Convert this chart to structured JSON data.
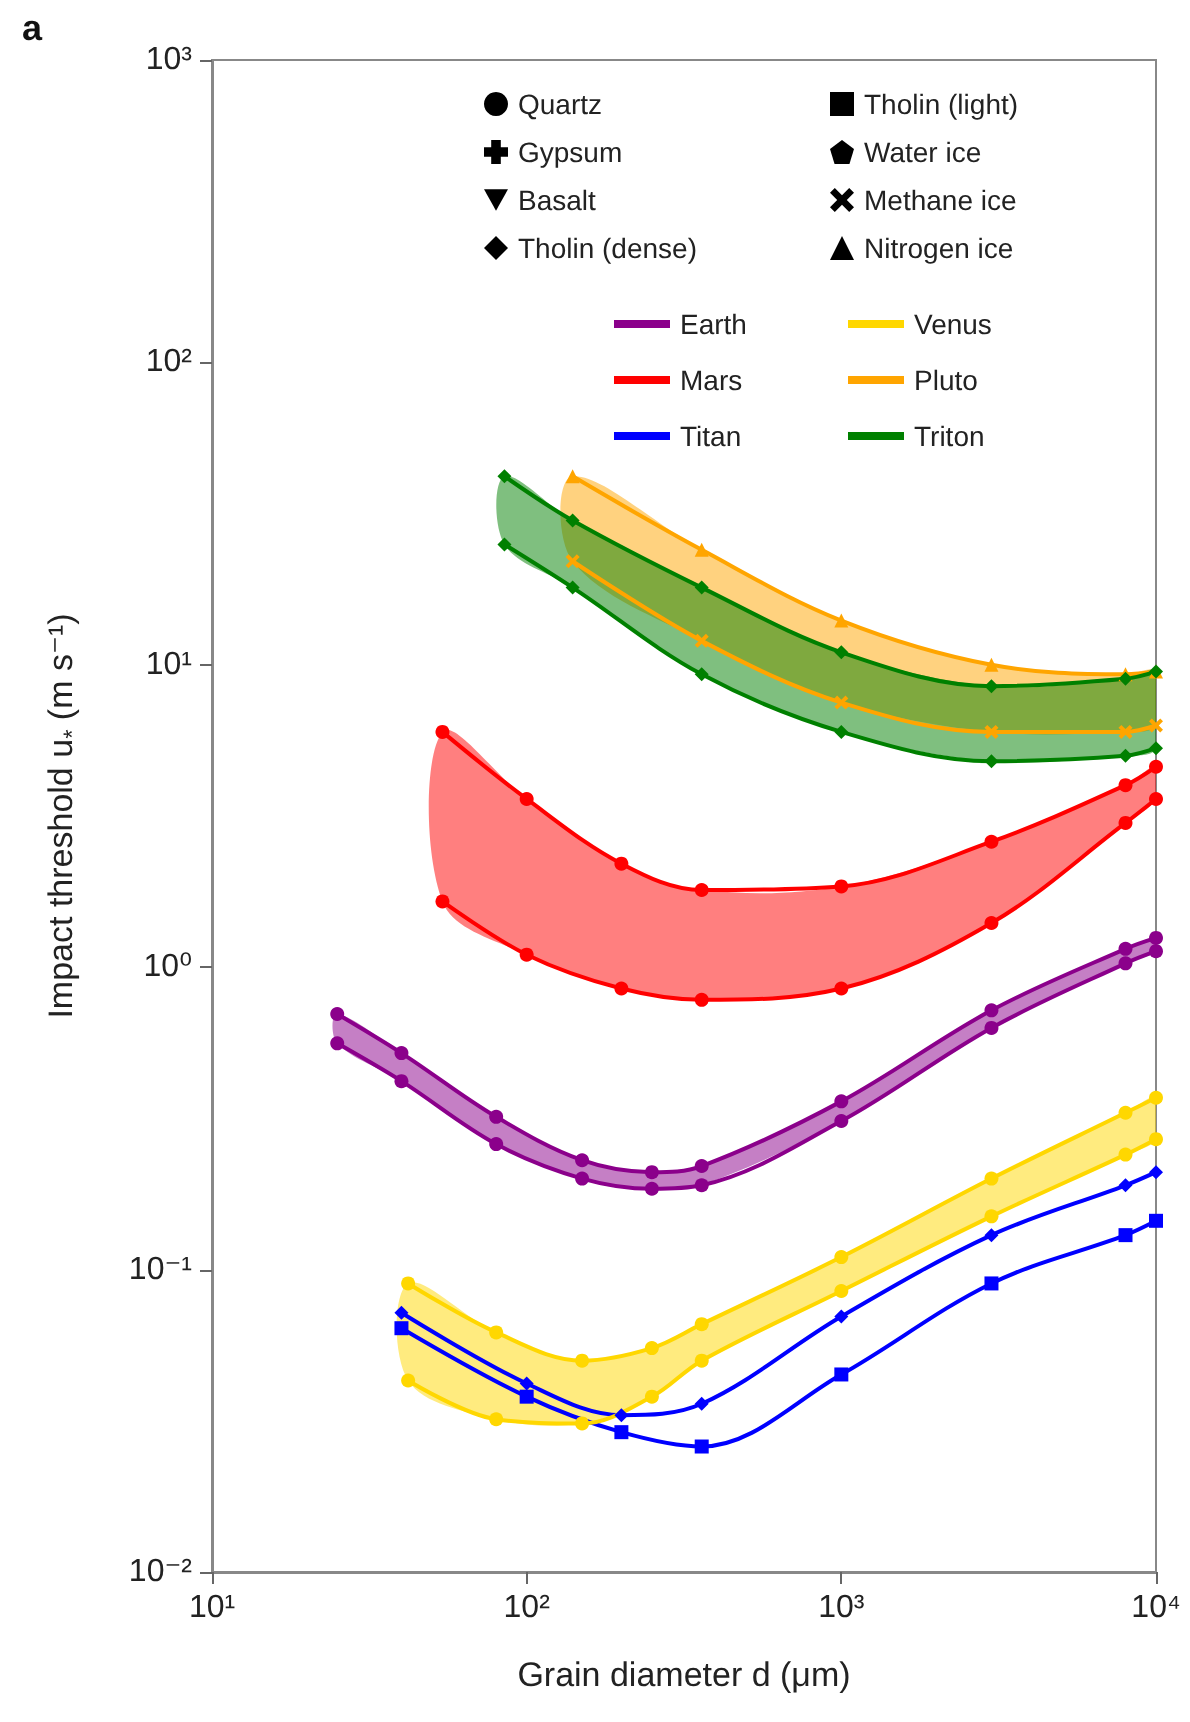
{
  "chart_data": {
    "type": "line",
    "title": "a",
    "xlabel": "Grain diameter d (μm)",
    "ylabel": "Impact threshold u$_{*}$ (m s⁻¹)",
    "log": "xy",
    "grid": false,
    "legend": "top right",
    "xlim": [
      10,
      10000
    ],
    "xticks": [
      {
        "value": 10,
        "label": "10¹"
      },
      {
        "value": 100,
        "label": "10²"
      },
      {
        "value": 1000,
        "label": "10³"
      },
      {
        "value": 10000,
        "label": "10⁴"
      }
    ],
    "ylim": [
      0.01,
      1000
    ],
    "yticks": [
      {
        "value": 0.01,
        "label": "10⁻²"
      },
      {
        "value": 0.1,
        "label": "10⁻¹"
      },
      {
        "value": 1,
        "label": "10⁰"
      },
      {
        "value": 10,
        "label": "10¹"
      },
      {
        "value": 100,
        "label": "10²"
      },
      {
        "value": 1000,
        "label": "10³"
      }
    ],
    "series": [
      {
        "name": "Quartz",
        "color": "#000000",
        "marker": "circle"
      },
      {
        "name": "Gypsum",
        "color": "#000000",
        "marker": "plus"
      },
      {
        "name": "Basalt",
        "color": "#000000",
        "marker": "triangle-down"
      },
      {
        "name": "Tholin (dense)",
        "color": "#000000",
        "marker": "diamond"
      },
      {
        "name": "Tholin (light)",
        "color": "#000000",
        "marker": "square"
      },
      {
        "name": "Water ice",
        "color": "#000000",
        "marker": "pentagon"
      },
      {
        "name": "Methane ice",
        "color": "#000000",
        "marker": "cross"
      },
      {
        "name": "Nitrogen ice",
        "color": "#000000",
        "marker": "triangle"
      },
      {
        "name": "Earth",
        "color": "#8b008b",
        "marker": "circle",
        "x": [
          25,
          40,
          80,
          150,
          250,
          360,
          1000,
          3000,
          8000,
          10000
        ],
        "values": [
          0.7,
          0.52,
          0.32,
          0.23,
          0.21,
          0.22,
          0.36,
          0.72,
          1.15,
          1.25
        ],
        "upper": [
          0.7,
          0.52,
          0.32,
          0.23,
          0.21,
          0.22,
          0.36,
          0.72,
          1.15,
          1.25
        ],
        "lower": [
          0.56,
          0.42,
          0.26,
          0.2,
          0.185,
          0.19,
          0.31,
          0.63,
          1.03,
          1.13
        ]
      },
      {
        "color": "#8b008b",
        "marker": "circle",
        "x": [
          25,
          40,
          80,
          150,
          250,
          360,
          1000,
          3000,
          8000,
          10000
        ],
        "values": [
          0.56,
          0.42,
          0.26,
          0.2,
          0.185,
          0.19,
          0.31,
          0.63,
          1.03,
          1.13
        ]
      },
      {
        "name": "Mars",
        "color": "#ff0000",
        "marker": "circle",
        "x": [
          54,
          100,
          200,
          360,
          1000,
          3000,
          8000,
          10000
        ],
        "values": [
          6.0,
          3.6,
          2.2,
          1.8,
          1.85,
          2.6,
          4.0,
          4.6
        ],
        "upper": [
          6.0,
          3.6,
          2.2,
          1.8,
          1.85,
          2.6,
          4.0,
          4.6
        ],
        "lower": [
          1.65,
          1.1,
          0.85,
          0.78,
          0.85,
          1.4,
          3.0,
          3.6
        ]
      },
      {
        "color": "#ff0000",
        "marker": "circle",
        "x": [
          54,
          100,
          200,
          360,
          1000,
          3000,
          8000,
          10000
        ],
        "values": [
          1.65,
          1.1,
          0.85,
          0.78,
          0.85,
          1.4,
          3.0,
          3.6
        ]
      },
      {
        "name": "Titan",
        "color": "#0000ff",
        "marker": "diamond",
        "x": [
          40,
          100,
          200,
          360,
          1000,
          3000,
          8000,
          10000
        ],
        "values": [
          0.072,
          0.042,
          0.033,
          0.036,
          0.07,
          0.13,
          0.19,
          0.21
        ]
      },
      {
        "color": "#0000ff",
        "marker": "square",
        "x": [
          40,
          100,
          200,
          360,
          1000,
          3000,
          8000,
          10000
        ],
        "values": [
          0.064,
          0.038,
          0.029,
          0.026,
          0.045,
          0.09,
          0.13,
          0.145
        ]
      },
      {
        "name": "Venus",
        "color": "#ffd700",
        "marker": "circle",
        "x": [
          42,
          80,
          150,
          250,
          360,
          1000,
          3000,
          8000,
          10000
        ],
        "values": [
          0.09,
          0.062,
          0.05,
          0.055,
          0.066,
          0.11,
          0.2,
          0.33,
          0.37
        ],
        "upper": [
          0.09,
          0.062,
          0.05,
          0.055,
          0.066,
          0.11,
          0.2,
          0.33,
          0.37
        ],
        "lower": [
          0.043,
          0.032,
          0.031,
          0.038,
          0.05,
          0.085,
          0.15,
          0.24,
          0.27
        ]
      },
      {
        "color": "#ffd700",
        "marker": "circle",
        "x": [
          42,
          80,
          150,
          250,
          360,
          1000,
          3000,
          8000,
          10000
        ],
        "values": [
          0.043,
          0.032,
          0.031,
          0.038,
          0.05,
          0.085,
          0.15,
          0.24,
          0.27
        ]
      },
      {
        "name": "Pluto",
        "color": "#ffa500",
        "marker": "triangle",
        "x": [
          140,
          360,
          1000,
          3000,
          8000,
          10000
        ],
        "values": [
          42,
          24,
          14,
          10,
          9.3,
          9.5
        ],
        "upper": [
          42,
          24,
          14,
          10,
          9.3,
          9.5
        ],
        "lower": [
          22,
          12,
          7.5,
          6,
          6,
          6.3
        ]
      },
      {
        "color": "#ffa500",
        "marker": "cross",
        "x": [
          140,
          360,
          1000,
          3000,
          8000,
          10000
        ],
        "values": [
          22,
          12,
          7.5,
          6,
          6,
          6.3
        ]
      },
      {
        "name": "Triton",
        "color": "#008000",
        "marker": "diamond",
        "x": [
          85,
          140,
          360,
          1000,
          3000,
          8000,
          10000
        ],
        "values": [
          42,
          30,
          18,
          11,
          8.5,
          9,
          9.5
        ],
        "upper": [
          42,
          30,
          18,
          11,
          8.5,
          9,
          9.5
        ],
        "lower": [
          25,
          18,
          9.3,
          6,
          4.8,
          5,
          5.3
        ]
      },
      {
        "color": "#008000",
        "marker": "diamond",
        "x": [
          85,
          140,
          360,
          1000,
          3000,
          8000,
          10000
        ],
        "values": [
          25,
          18,
          9.3,
          6,
          4.8,
          5,
          5.3
        ]
      }
    ]
  }
}
